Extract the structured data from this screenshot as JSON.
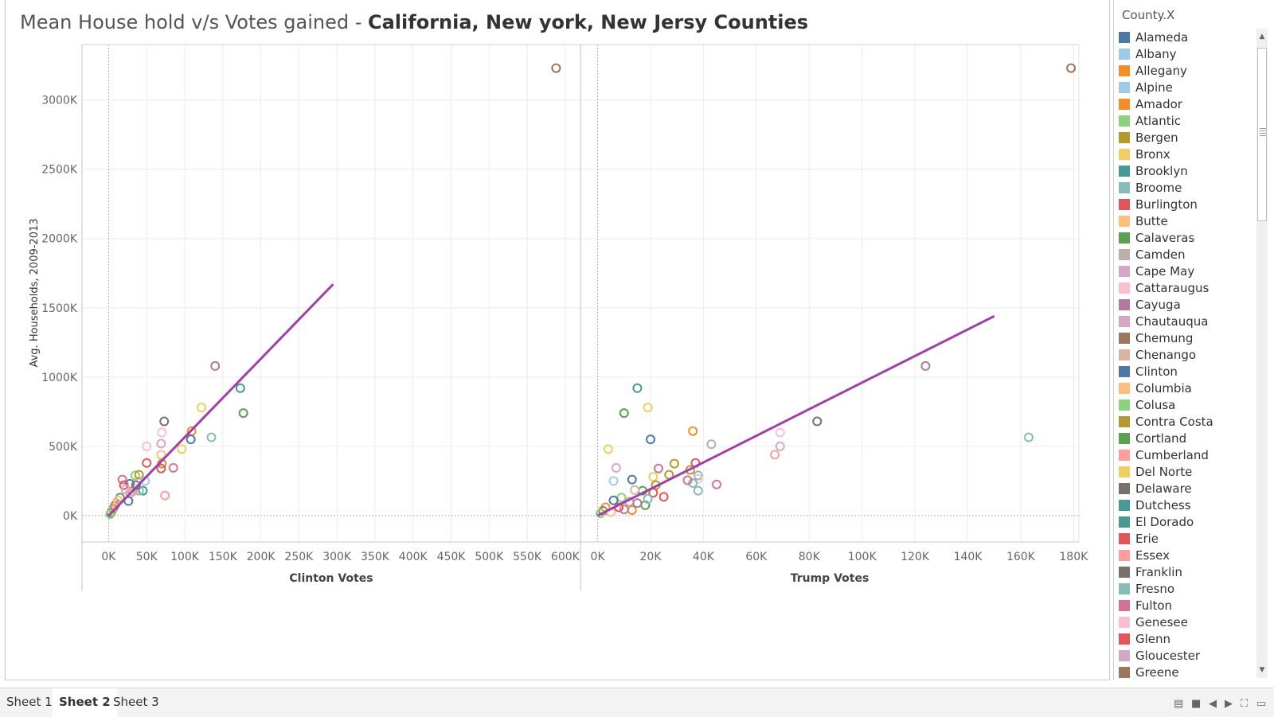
{
  "title": {
    "part1": "Mean House hold v/s Votes gained - ",
    "part2": "California, New york, New Jersy Counties"
  },
  "legend": {
    "title": "County.X",
    "items": [
      {
        "label": "Alameda",
        "color": "#4e79a7"
      },
      {
        "label": "Albany",
        "color": "#a0cbe8"
      },
      {
        "label": "Allegany",
        "color": "#f28e2b"
      },
      {
        "label": "Alpine",
        "color": "#a0cbe8"
      },
      {
        "label": "Amador",
        "color": "#f28e2b"
      },
      {
        "label": "Atlantic",
        "color": "#8cd17d"
      },
      {
        "label": "Bergen",
        "color": "#b6992d"
      },
      {
        "label": "Bronx",
        "color": "#f1ce63"
      },
      {
        "label": "Brooklyn",
        "color": "#499894"
      },
      {
        "label": "Broome",
        "color": "#86bcb6"
      },
      {
        "label": "Burlington",
        "color": "#e15759"
      },
      {
        "label": "Butte",
        "color": "#ffbe7d"
      },
      {
        "label": "Calaveras",
        "color": "#59a14f"
      },
      {
        "label": "Camden",
        "color": "#bab0ac"
      },
      {
        "label": "Cape May",
        "color": "#d4a6c8"
      },
      {
        "label": "Cattaraugus",
        "color": "#fabfd2"
      },
      {
        "label": "Cayuga",
        "color": "#b07aa1"
      },
      {
        "label": "Chautauqua",
        "color": "#d4a6c8"
      },
      {
        "label": "Chemung",
        "color": "#9d7660"
      },
      {
        "label": "Chenango",
        "color": "#d7b5a6"
      },
      {
        "label": "Clinton",
        "color": "#4e79a7"
      },
      {
        "label": "Columbia",
        "color": "#ffbe7d"
      },
      {
        "label": "Colusa",
        "color": "#8cd17d"
      },
      {
        "label": "Contra Costa",
        "color": "#b6992d"
      },
      {
        "label": "Cortland",
        "color": "#59a14f"
      },
      {
        "label": "Cumberland",
        "color": "#ff9d9a"
      },
      {
        "label": "Del Norte",
        "color": "#f1ce63"
      },
      {
        "label": "Delaware",
        "color": "#79706e"
      },
      {
        "label": "Dutchess",
        "color": "#499894"
      },
      {
        "label": "El Dorado",
        "color": "#499894"
      },
      {
        "label": "Erie",
        "color": "#e15759"
      },
      {
        "label": "Essex",
        "color": "#ff9d9a"
      },
      {
        "label": "Franklin",
        "color": "#79706e"
      },
      {
        "label": "Fresno",
        "color": "#86bcb6"
      },
      {
        "label": "Fulton",
        "color": "#d37295"
      },
      {
        "label": "Genesee",
        "color": "#fabfd2"
      },
      {
        "label": "Glenn",
        "color": "#e15759"
      },
      {
        "label": "Gloucester",
        "color": "#d4a6c8"
      },
      {
        "label": "Greene",
        "color": "#9d7660"
      }
    ]
  },
  "chart_data": {
    "type": "scatter",
    "y_axis": {
      "label": "Avg. Households, 2009-2013",
      "ticks": [
        "0K",
        "500K",
        "1000K",
        "1500K",
        "2000K",
        "2500K",
        "3000K"
      ],
      "range": [
        -190000,
        3400000
      ]
    },
    "panels": [
      {
        "xlabel": "Clinton Votes",
        "x_range": [
          -35000,
          620000
        ],
        "x_ticks": [
          "0K",
          "50K",
          "100K",
          "150K",
          "200K",
          "250K",
          "300K",
          "350K",
          "400K",
          "450K",
          "500K",
          "550K",
          "600K"
        ],
        "trend": {
          "color": "#a040a8",
          "from": [
            0,
            0
          ],
          "to": [
            295000,
            1670000
          ]
        },
        "points": [
          {
            "x": 588000,
            "y": 3230000,
            "c": "#9d7660"
          },
          {
            "x": 140000,
            "y": 1080000,
            "c": "#b07aa1"
          },
          {
            "x": 173000,
            "y": 920000,
            "c": "#499894"
          },
          {
            "x": 177000,
            "y": 740000,
            "c": "#59a14f"
          },
          {
            "x": 73000,
            "y": 680000,
            "c": "#79706e"
          },
          {
            "x": 122000,
            "y": 780000,
            "c": "#f1ce63"
          },
          {
            "x": 109000,
            "y": 610000,
            "c": "#f28e2b"
          },
          {
            "x": 108000,
            "y": 550000,
            "c": "#4e79a7"
          },
          {
            "x": 135000,
            "y": 565000,
            "c": "#86bcb6"
          },
          {
            "x": 70000,
            "y": 600000,
            "c": "#fabfd2"
          },
          {
            "x": 50000,
            "y": 500000,
            "c": "#fabfd2"
          },
          {
            "x": 69000,
            "y": 520000,
            "c": "#d4a6c8"
          },
          {
            "x": 96000,
            "y": 480000,
            "c": "#f1ce63"
          },
          {
            "x": 69000,
            "y": 440000,
            "c": "#ffbe7d"
          },
          {
            "x": 50000,
            "y": 380000,
            "c": "#e15759"
          },
          {
            "x": 70000,
            "y": 375000,
            "c": "#b6992d"
          },
          {
            "x": 85000,
            "y": 345000,
            "c": "#d37295"
          },
          {
            "x": 69000,
            "y": 340000,
            "c": "#e15759"
          },
          {
            "x": 74000,
            "y": 145000,
            "c": "#ff9d9a"
          },
          {
            "x": 18000,
            "y": 260000,
            "c": "#d37295"
          },
          {
            "x": 35000,
            "y": 290000,
            "c": "#8cd17d"
          },
          {
            "x": 40000,
            "y": 295000,
            "c": "#b6992d"
          },
          {
            "x": 48000,
            "y": 250000,
            "c": "#a0cbe8"
          },
          {
            "x": 45000,
            "y": 180000,
            "c": "#499894"
          },
          {
            "x": 40000,
            "y": 180000,
            "c": "#86bcb6"
          },
          {
            "x": 28000,
            "y": 230000,
            "c": "#4e79a7"
          },
          {
            "x": 20000,
            "y": 220000,
            "c": "#e15759"
          },
          {
            "x": 28000,
            "y": 160000,
            "c": "#bab0ac"
          },
          {
            "x": 26000,
            "y": 105000,
            "c": "#4e79a7"
          },
          {
            "x": 15000,
            "y": 130000,
            "c": "#59a14f"
          },
          {
            "x": 10000,
            "y": 90000,
            "c": "#d7b5a6"
          },
          {
            "x": 6000,
            "y": 50000,
            "c": "#f28e2b"
          },
          {
            "x": 4000,
            "y": 35000,
            "c": "#f1ce63"
          },
          {
            "x": 3000,
            "y": 20000,
            "c": "#499894"
          },
          {
            "x": 2000,
            "y": 10000,
            "c": "#8cd17d"
          },
          {
            "x": 8000,
            "y": 70000,
            "c": "#b07aa1"
          },
          {
            "x": 12000,
            "y": 110000,
            "c": "#ffbe7d"
          },
          {
            "x": 22000,
            "y": 190000,
            "c": "#d4a6c8"
          },
          {
            "x": 32000,
            "y": 175000,
            "c": "#ff9d9a"
          },
          {
            "x": 36000,
            "y": 220000,
            "c": "#79706e"
          }
        ]
      },
      {
        "xlabel": "Trump Votes",
        "x_range": [
          -6500,
          182000
        ],
        "x_ticks": [
          "0K",
          "20K",
          "40K",
          "60K",
          "80K",
          "100K",
          "120K",
          "140K",
          "160K",
          "180K"
        ],
        "trend": {
          "color": "#a040a8",
          "from": [
            0,
            0
          ],
          "to": [
            150000,
            1440000
          ]
        },
        "points": [
          {
            "x": 179000,
            "y": 3230000,
            "c": "#9d7660"
          },
          {
            "x": 124000,
            "y": 1080000,
            "c": "#b07aa1"
          },
          {
            "x": 15000,
            "y": 920000,
            "c": "#499894"
          },
          {
            "x": 10000,
            "y": 740000,
            "c": "#59a14f"
          },
          {
            "x": 83000,
            "y": 680000,
            "c": "#79706e"
          },
          {
            "x": 19000,
            "y": 780000,
            "c": "#f1ce63"
          },
          {
            "x": 36000,
            "y": 610000,
            "c": "#f28e2b"
          },
          {
            "x": 20000,
            "y": 550000,
            "c": "#4e79a7"
          },
          {
            "x": 163000,
            "y": 565000,
            "c": "#86bcb6"
          },
          {
            "x": 69000,
            "y": 600000,
            "c": "#fabfd2"
          },
          {
            "x": 69000,
            "y": 500000,
            "c": "#d4a6c8"
          },
          {
            "x": 43000,
            "y": 515000,
            "c": "#bab0ac"
          },
          {
            "x": 4000,
            "y": 480000,
            "c": "#f1ce63"
          },
          {
            "x": 67000,
            "y": 440000,
            "c": "#ff9d9a"
          },
          {
            "x": 37000,
            "y": 380000,
            "c": "#e15759"
          },
          {
            "x": 29000,
            "y": 375000,
            "c": "#b6992d"
          },
          {
            "x": 7000,
            "y": 345000,
            "c": "#d4a6c8"
          },
          {
            "x": 23000,
            "y": 340000,
            "c": "#d37295"
          },
          {
            "x": 35000,
            "y": 330000,
            "c": "#b6992d"
          },
          {
            "x": 27000,
            "y": 295000,
            "c": "#b6992d"
          },
          {
            "x": 38000,
            "y": 290000,
            "c": "#86bcb6"
          },
          {
            "x": 21000,
            "y": 280000,
            "c": "#f1ce63"
          },
          {
            "x": 13000,
            "y": 260000,
            "c": "#4e79a7"
          },
          {
            "x": 6000,
            "y": 250000,
            "c": "#a0cbe8"
          },
          {
            "x": 38000,
            "y": 265000,
            "c": "#fabfd2"
          },
          {
            "x": 36000,
            "y": 235000,
            "c": "#86bcb6"
          },
          {
            "x": 45000,
            "y": 225000,
            "c": "#d37295"
          },
          {
            "x": 22000,
            "y": 220000,
            "c": "#b6992d"
          },
          {
            "x": 34000,
            "y": 255000,
            "c": "#d37295"
          },
          {
            "x": 38000,
            "y": 180000,
            "c": "#86bcb6"
          },
          {
            "x": 17000,
            "y": 180000,
            "c": "#59a14f"
          },
          {
            "x": 14000,
            "y": 185000,
            "c": "#d7b5a6"
          },
          {
            "x": 21000,
            "y": 165000,
            "c": "#e15759"
          },
          {
            "x": 25000,
            "y": 135000,
            "c": "#e15759"
          },
          {
            "x": 18000,
            "y": 75000,
            "c": "#59a14f"
          },
          {
            "x": 9000,
            "y": 130000,
            "c": "#8cd17d"
          },
          {
            "x": 12000,
            "y": 100000,
            "c": "#bab0ac"
          },
          {
            "x": 6000,
            "y": 110000,
            "c": "#4e79a7"
          },
          {
            "x": 3000,
            "y": 60000,
            "c": "#f28e2b"
          },
          {
            "x": 2000,
            "y": 35000,
            "c": "#9d7660"
          },
          {
            "x": 1000,
            "y": 15000,
            "c": "#8cd17d"
          },
          {
            "x": 5000,
            "y": 25000,
            "c": "#ffbe7d"
          },
          {
            "x": 13000,
            "y": 40000,
            "c": "#f28e2b"
          },
          {
            "x": 15000,
            "y": 90000,
            "c": "#b07aa1"
          },
          {
            "x": 8000,
            "y": 60000,
            "c": "#e15759"
          },
          {
            "x": 19000,
            "y": 120000,
            "c": "#86bcb6"
          },
          {
            "x": 10000,
            "y": 45000,
            "c": "#d37295"
          }
        ]
      }
    ]
  },
  "sheets": [
    "Sheet 1",
    "Sheet 2",
    "Sheet 3"
  ],
  "active_sheet": "Sheet 2"
}
